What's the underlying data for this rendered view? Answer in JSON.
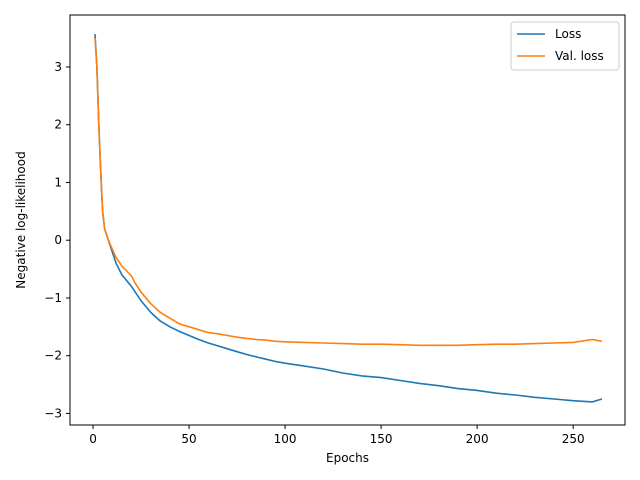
{
  "chart_data": {
    "type": "line",
    "xlabel": "Epochs",
    "ylabel": "Negative log-likelihood",
    "xlim": [
      -12,
      277
    ],
    "ylim": [
      -3.2,
      3.9
    ],
    "xticks": [
      0,
      50,
      100,
      150,
      200,
      250
    ],
    "yticks": [
      -3,
      -2,
      -1,
      0,
      1,
      2,
      3
    ],
    "grid": false,
    "legend_position": "top-right",
    "series": [
      {
        "name": "Loss",
        "color": "#1f77b4",
        "x": [
          1,
          2,
          3,
          4,
          5,
          6,
          8,
          10,
          12,
          15,
          18,
          20,
          22,
          25,
          30,
          35,
          40,
          45,
          50,
          55,
          60,
          65,
          70,
          75,
          80,
          85,
          90,
          95,
          100,
          110,
          120,
          130,
          140,
          150,
          160,
          170,
          180,
          190,
          200,
          210,
          220,
          230,
          240,
          250,
          260,
          265
        ],
        "y": [
          3.57,
          3.0,
          2.0,
          1.2,
          0.5,
          0.2,
          0.0,
          -0.2,
          -0.4,
          -0.6,
          -0.72,
          -0.8,
          -0.9,
          -1.05,
          -1.25,
          -1.4,
          -1.5,
          -1.58,
          -1.65,
          -1.72,
          -1.78,
          -1.83,
          -1.88,
          -1.93,
          -1.98,
          -2.02,
          -2.06,
          -2.1,
          -2.13,
          -2.18,
          -2.23,
          -2.3,
          -2.35,
          -2.38,
          -2.43,
          -2.48,
          -2.52,
          -2.57,
          -2.6,
          -2.65,
          -2.68,
          -2.72,
          -2.75,
          -2.78,
          -2.8,
          -2.75
        ]
      },
      {
        "name": "Val. loss",
        "color": "#ff7f0e",
        "x": [
          1,
          2,
          3,
          4,
          5,
          6,
          8,
          10,
          12,
          15,
          18,
          20,
          22,
          25,
          30,
          35,
          40,
          45,
          50,
          55,
          60,
          65,
          70,
          75,
          80,
          85,
          90,
          95,
          100,
          110,
          120,
          130,
          140,
          150,
          160,
          170,
          180,
          190,
          200,
          210,
          220,
          230,
          240,
          250,
          260,
          265
        ],
        "y": [
          3.5,
          3.0,
          2.0,
          1.2,
          0.5,
          0.2,
          0.0,
          -0.15,
          -0.3,
          -0.45,
          -0.55,
          -0.62,
          -0.75,
          -0.9,
          -1.1,
          -1.25,
          -1.35,
          -1.45,
          -1.5,
          -1.55,
          -1.6,
          -1.62,
          -1.65,
          -1.68,
          -1.7,
          -1.72,
          -1.73,
          -1.75,
          -1.76,
          -1.77,
          -1.78,
          -1.79,
          -1.8,
          -1.8,
          -1.81,
          -1.82,
          -1.82,
          -1.82,
          -1.81,
          -1.8,
          -1.8,
          -1.79,
          -1.78,
          -1.77,
          -1.72,
          -1.75
        ]
      }
    ]
  }
}
